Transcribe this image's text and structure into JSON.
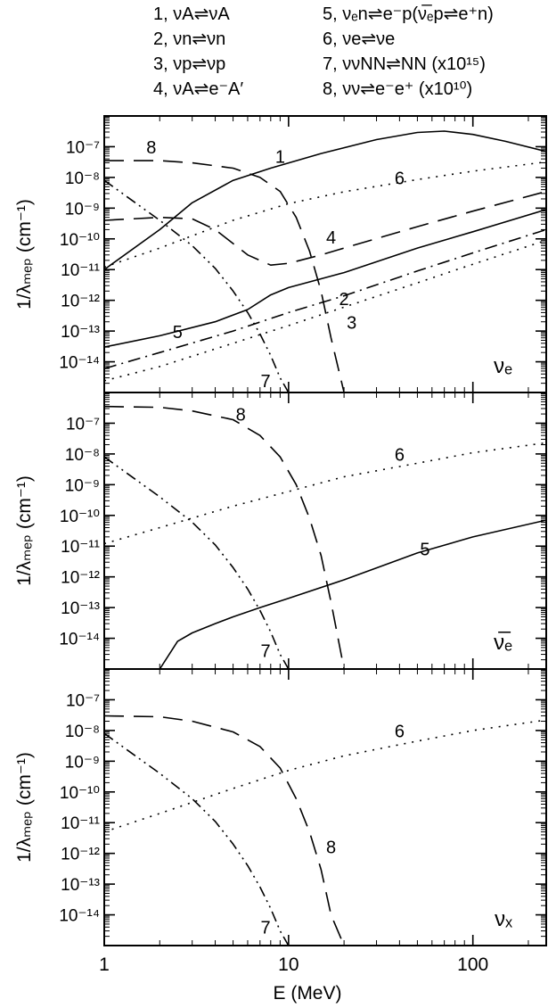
{
  "legend": {
    "entries": [
      {
        "num": "1",
        "reaction": "νA⇌νA"
      },
      {
        "num": "2",
        "reaction": "νn⇌νn"
      },
      {
        "num": "3",
        "reaction": "νp⇌νp"
      },
      {
        "num": "4",
        "reaction": "νA⇌e⁻A′"
      },
      {
        "num": "5",
        "reaction": "νₑn⇌e⁻p(ν̅ₑp⇌e⁺n)"
      },
      {
        "num": "6",
        "reaction": "νe⇌νe"
      },
      {
        "num": "7",
        "reaction": "ννNN⇌NN (x10¹⁵)"
      },
      {
        "num": "8",
        "reaction": "νν⇌e⁻e⁺ (x10¹⁰)"
      }
    ]
  },
  "chart_data": [
    {
      "type": "line",
      "panel_label": "νₑ",
      "xscale": "log",
      "yscale": "log",
      "xlim": [
        1,
        250
      ],
      "ylim": [
        1e-15,
        1e-06
      ],
      "ytick_labels": [
        "10⁻⁷",
        "10⁻⁸",
        "10⁻⁹",
        "10⁻¹⁰",
        "10⁻¹¹",
        "10⁻¹²",
        "10⁻¹³",
        "10⁻¹⁴"
      ],
      "ylabel": "1/λₘₑₚ (cm⁻¹)",
      "series": [
        {
          "name": "1",
          "style": "solid",
          "x": [
            1,
            2,
            3,
            5,
            8,
            15,
            30,
            50,
            70,
            100,
            150,
            250
          ],
          "y": [
            1e-11,
            2e-10,
            1.5e-09,
            8e-09,
            2e-08,
            6e-08,
            1.7e-07,
            2.9e-07,
            3.2e-07,
            2.5e-07,
            1.5e-07,
            7e-08
          ]
        },
        {
          "name": "5",
          "style": "solid",
          "x": [
            1,
            2,
            4,
            6,
            8,
            10,
            20,
            50,
            100,
            250
          ],
          "y": [
            3e-14,
            7e-14,
            2e-13,
            5e-13,
            1.5e-12,
            2.6e-12,
            8e-12,
            5e-11,
            1.7e-10,
            9e-10
          ]
        },
        {
          "name": "2",
          "style": "dashdot",
          "x": [
            1,
            2,
            5,
            10,
            20,
            50,
            100,
            250
          ],
          "y": [
            6e-15,
            2e-14,
            1e-13,
            4e-13,
            1.4e-12,
            9e-12,
            3.5e-11,
            2e-10
          ]
        },
        {
          "name": "3",
          "style": "dotted",
          "x": [
            1,
            2,
            5,
            10,
            20,
            50,
            100,
            250
          ],
          "y": [
            2.4e-15,
            7e-15,
            4e-14,
            1.5e-13,
            6e-13,
            3.7e-12,
            1.5e-11,
            9e-11
          ]
        },
        {
          "name": "4",
          "style": "dashed",
          "x": [
            1,
            2,
            3,
            4,
            6,
            8,
            10,
            15,
            20,
            50,
            100,
            250
          ],
          "y": [
            4e-10,
            5e-10,
            4.5e-10,
            2e-10,
            3e-11,
            1.4e-11,
            1.6e-11,
            3e-11,
            5e-11,
            2.5e-10,
            8e-10,
            3.5e-09
          ]
        },
        {
          "name": "6",
          "style": "dotted",
          "x": [
            1,
            2,
            5,
            10,
            20,
            50,
            100,
            250
          ],
          "y": [
            1.2e-11,
            5e-11,
            4e-10,
            1.4e-09,
            3.4e-09,
            8.5e-09,
            1.6e-08,
            3.2e-08
          ]
        },
        {
          "name": "7",
          "style": "dashdotdot",
          "x": [
            1,
            2,
            3,
            4,
            5,
            6,
            7,
            8,
            9,
            10
          ],
          "y": [
            8e-09,
            4e-10,
            6e-11,
            1.1e-11,
            2e-12,
            4e-13,
            8e-14,
            1.6e-14,
            3e-15,
            1e-15
          ]
        },
        {
          "name": "8",
          "style": "dashed",
          "x": [
            1,
            2,
            3,
            5,
            7,
            9,
            11,
            13,
            15,
            17,
            20
          ],
          "y": [
            3.5e-08,
            3.5e-08,
            3e-08,
            2e-08,
            1e-08,
            3.5e-09,
            5e-10,
            4e-11,
            2e-12,
            6e-14,
            1e-15
          ]
        }
      ],
      "curve_labels": [
        {
          "text": "1",
          "x": 9,
          "y": 3e-08
        },
        {
          "text": "2",
          "x": 20,
          "y": 7e-13
        },
        {
          "text": "3",
          "x": 22,
          "y": 1.2e-13
        },
        {
          "text": "4",
          "x": 17,
          "y": 7e-11
        },
        {
          "text": "5",
          "x": 2.5,
          "y": 6e-14
        },
        {
          "text": "6",
          "x": 40,
          "y": 6e-09
        },
        {
          "text": "7",
          "x": 7.5,
          "y": 1.5e-15
        },
        {
          "text": "8",
          "x": 1.8,
          "y": 6e-08
        }
      ]
    },
    {
      "type": "line",
      "panel_label": "ν̅ₑ",
      "xscale": "log",
      "yscale": "log",
      "xlim": [
        1,
        250
      ],
      "ylim": [
        1e-15,
        1e-06
      ],
      "ytick_labels": [
        "10⁻⁷",
        "10⁻⁸",
        "10⁻⁹",
        "10⁻¹⁰",
        "10⁻¹¹",
        "10⁻¹²",
        "10⁻¹³",
        "10⁻¹⁴"
      ],
      "ylabel": "1/λₘₑₚ (cm⁻¹)",
      "series": [
        {
          "name": "5",
          "style": "solid",
          "x": [
            2,
            2.5,
            3,
            4,
            5,
            7,
            10,
            20,
            50,
            100,
            250
          ],
          "y": [
            1e-15,
            8e-15,
            1.5e-14,
            3e-14,
            5e-14,
            1e-13,
            2e-13,
            8e-13,
            6e-12,
            2e-11,
            7e-11
          ]
        },
        {
          "name": "6",
          "style": "dotted",
          "x": [
            1,
            2,
            5,
            10,
            20,
            50,
            100,
            250
          ],
          "y": [
            1.2e-11,
            4e-11,
            2e-10,
            6e-10,
            1.8e-09,
            5e-09,
            1.1e-08,
            2.3e-08
          ]
        },
        {
          "name": "7",
          "style": "dashdotdot",
          "x": [
            1,
            2,
            3,
            4,
            5,
            6,
            7,
            8,
            9,
            10
          ],
          "y": [
            8e-09,
            4e-10,
            6e-11,
            1.1e-11,
            2e-12,
            4e-13,
            8e-14,
            1.6e-14,
            3e-15,
            1e-15
          ]
        },
        {
          "name": "8",
          "style": "dashed",
          "x": [
            1,
            2,
            3,
            5,
            7,
            9,
            11,
            13,
            15,
            17,
            20
          ],
          "y": [
            3.5e-07,
            3.3e-07,
            2.5e-07,
            1.3e-07,
            4e-08,
            8e-09,
            1e-09,
            8e-11,
            5e-12,
            1.5e-13,
            1e-15
          ]
        }
      ],
      "curve_labels": [
        {
          "text": "5",
          "x": 55,
          "y": 5e-12
        },
        {
          "text": "6",
          "x": 40,
          "y": 6e-09
        },
        {
          "text": "7",
          "x": 7.5,
          "y": 2.5e-15
        },
        {
          "text": "8",
          "x": 5.5,
          "y": 1.2e-07
        }
      ]
    },
    {
      "type": "line",
      "panel_label": "νₓ",
      "xscale": "log",
      "yscale": "log",
      "xlim": [
        1,
        250
      ],
      "ylim": [
        1e-15,
        1e-06
      ],
      "xlabel": "E (MeV)",
      "xtick_labels": [
        {
          "v": 1,
          "t": "1"
        },
        {
          "v": 10,
          "t": "10"
        },
        {
          "v": 100,
          "t": "100"
        }
      ],
      "ytick_labels": [
        "10⁻⁷",
        "10⁻⁸",
        "10⁻⁹",
        "10⁻¹⁰",
        "10⁻¹¹",
        "10⁻¹²",
        "10⁻¹³",
        "10⁻¹⁴"
      ],
      "ylabel": "1/λₘₑₚ (cm⁻¹)",
      "series": [
        {
          "name": "6",
          "style": "dotted",
          "x": [
            1,
            2,
            5,
            10,
            20,
            50,
            100,
            250
          ],
          "y": [
            5e-12,
            2e-11,
            1.3e-10,
            5e-10,
            1.5e-09,
            4.5e-09,
            1e-08,
            2.2e-08
          ]
        },
        {
          "name": "7",
          "style": "dashdotdot",
          "x": [
            1,
            2,
            3,
            4,
            5,
            6,
            7,
            8,
            9,
            10
          ],
          "y": [
            8e-09,
            4e-10,
            6e-11,
            1.1e-11,
            2e-12,
            4e-13,
            8e-14,
            1.6e-14,
            3e-15,
            1e-15
          ]
        },
        {
          "name": "8",
          "style": "dashed",
          "x": [
            1,
            2,
            3,
            5,
            7,
            9,
            11,
            13,
            15,
            17,
            20
          ],
          "y": [
            3e-08,
            2.8e-08,
            2e-08,
            9e-09,
            3e-09,
            6e-10,
            6e-11,
            5e-12,
            3e-13,
            1e-14,
            1e-15
          ]
        }
      ],
      "curve_labels": [
        {
          "text": "6",
          "x": 40,
          "y": 6e-09
        },
        {
          "text": "7",
          "x": 7.5,
          "y": 2.5e-15
        },
        {
          "text": "8",
          "x": 17,
          "y": 1e-12
        }
      ]
    }
  ]
}
